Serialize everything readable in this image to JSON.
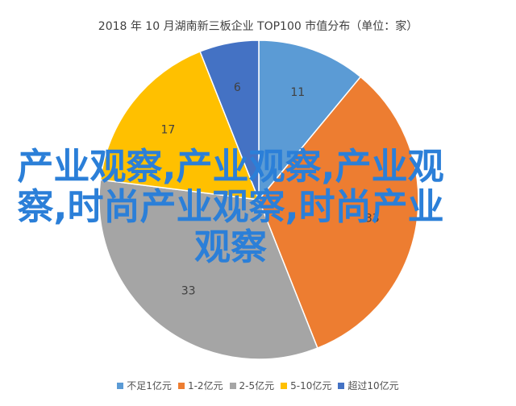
{
  "chart_data": {
    "type": "pie",
    "title": "2018 年 10 月湖南新三板企业 TOP100 市值分布（单位：家）",
    "categories": [
      "不足1亿元",
      "1-2亿元",
      "2-5亿元",
      "5-10亿元",
      "超过10亿元"
    ],
    "values": [
      11,
      33,
      33,
      17,
      6
    ],
    "colors": [
      "#5b9bd5",
      "#ed7d31",
      "#a5a5a5",
      "#ffc000",
      "#4472c4"
    ],
    "legend_position": "bottom"
  },
  "overlay": {
    "text": "产业观察,产业观察,产业观察,时尚产业观察,时尚产业观察"
  }
}
